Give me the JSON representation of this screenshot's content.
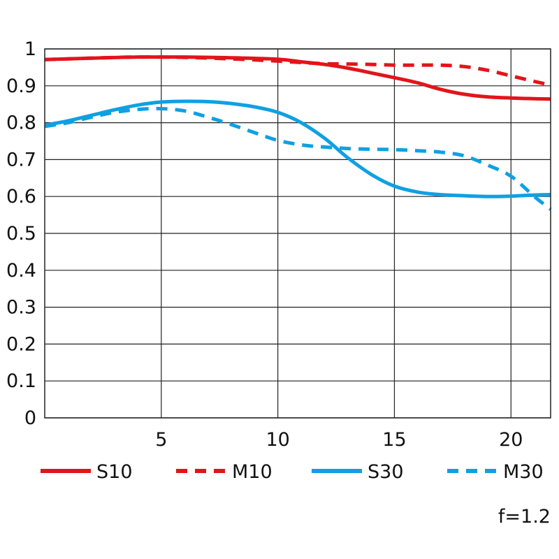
{
  "chart_data": {
    "type": "line",
    "title": "",
    "xlabel": "",
    "ylabel": "",
    "xlim": [
      0,
      21.7
    ],
    "ylim": [
      0,
      1
    ],
    "x_ticks": [
      5,
      10,
      15,
      20
    ],
    "x_tick_labels": [
      "5",
      "10",
      "15",
      "20"
    ],
    "y_ticks": [
      0,
      0.1,
      0.2,
      0.3,
      0.4,
      0.5,
      0.6,
      0.7,
      0.8,
      0.9,
      1
    ],
    "y_tick_labels": [
      "0",
      "0.1",
      "0.2",
      "0.3",
      "0.4",
      "0.5",
      "0.6",
      "0.7",
      "0.8",
      "0.9",
      "1"
    ],
    "grid": true,
    "legend_position": "bottom",
    "annotation": "f=1.2",
    "series": [
      {
        "name": "S10",
        "color": "#e3141b",
        "dashed": false,
        "points": [
          [
            0,
            0.971
          ],
          [
            2,
            0.975
          ],
          [
            4,
            0.978
          ],
          [
            6,
            0.978
          ],
          [
            8,
            0.976
          ],
          [
            10,
            0.972
          ],
          [
            11,
            0.965
          ],
          [
            12,
            0.958
          ],
          [
            13,
            0.948
          ],
          [
            14,
            0.935
          ],
          [
            15,
            0.922
          ],
          [
            16,
            0.908
          ],
          [
            17,
            0.89
          ],
          [
            18,
            0.877
          ],
          [
            19,
            0.87
          ],
          [
            20,
            0.867
          ],
          [
            21,
            0.865
          ],
          [
            21.7,
            0.864
          ]
        ]
      },
      {
        "name": "M10",
        "color": "#e3141b",
        "dashed": true,
        "points": [
          [
            0,
            0.971
          ],
          [
            2,
            0.975
          ],
          [
            4,
            0.978
          ],
          [
            6,
            0.977
          ],
          [
            8,
            0.973
          ],
          [
            10,
            0.967
          ],
          [
            11,
            0.963
          ],
          [
            12,
            0.96
          ],
          [
            13,
            0.959
          ],
          [
            14,
            0.958
          ],
          [
            15,
            0.956
          ],
          [
            16,
            0.956
          ],
          [
            17,
            0.956
          ],
          [
            18,
            0.952
          ],
          [
            19,
            0.942
          ],
          [
            20,
            0.927
          ],
          [
            21,
            0.912
          ],
          [
            21.7,
            0.902
          ]
        ]
      },
      {
        "name": "S30",
        "color": "#0fa0e3",
        "dashed": false,
        "points": [
          [
            0,
            0.793
          ],
          [
            1,
            0.805
          ],
          [
            2,
            0.82
          ],
          [
            3,
            0.835
          ],
          [
            4,
            0.848
          ],
          [
            5,
            0.856
          ],
          [
            6,
            0.858
          ],
          [
            7,
            0.857
          ],
          [
            8,
            0.852
          ],
          [
            9,
            0.843
          ],
          [
            10,
            0.828
          ],
          [
            11,
            0.8
          ],
          [
            12,
            0.758
          ],
          [
            13,
            0.705
          ],
          [
            14,
            0.66
          ],
          [
            15,
            0.628
          ],
          [
            16,
            0.612
          ],
          [
            17,
            0.605
          ],
          [
            18,
            0.602
          ],
          [
            19,
            0.6
          ],
          [
            20,
            0.601
          ],
          [
            21,
            0.604
          ],
          [
            21.7,
            0.605
          ]
        ]
      },
      {
        "name": "M30",
        "color": "#0fa0e3",
        "dashed": true,
        "points": [
          [
            0,
            0.79
          ],
          [
            1,
            0.8
          ],
          [
            2,
            0.815
          ],
          [
            3,
            0.828
          ],
          [
            4,
            0.836
          ],
          [
            5,
            0.838
          ],
          [
            6,
            0.832
          ],
          [
            7,
            0.815
          ],
          [
            8,
            0.795
          ],
          [
            9,
            0.773
          ],
          [
            10,
            0.752
          ],
          [
            11,
            0.74
          ],
          [
            12,
            0.734
          ],
          [
            13,
            0.73
          ],
          [
            14,
            0.728
          ],
          [
            15,
            0.727
          ],
          [
            16,
            0.724
          ],
          [
            17,
            0.72
          ],
          [
            18,
            0.71
          ],
          [
            19,
            0.685
          ],
          [
            20,
            0.655
          ],
          [
            21,
            0.6
          ],
          [
            21.7,
            0.565
          ]
        ]
      }
    ]
  }
}
